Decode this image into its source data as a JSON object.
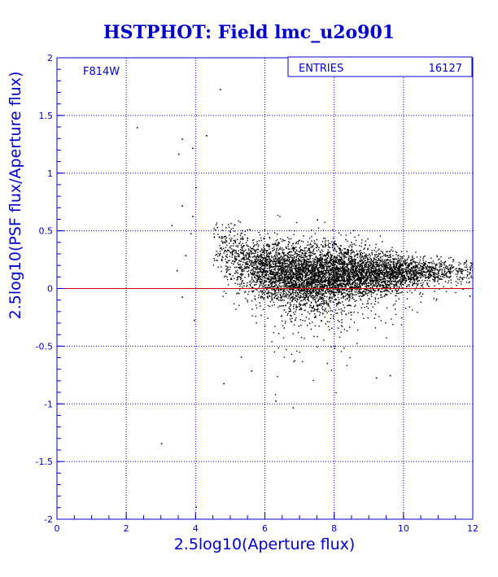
{
  "chart_data": {
    "type": "scatter",
    "title": "HSTPHOT: Field lmc_u2o901",
    "filter_label": "F814W",
    "stats": {
      "label": "ENTRIES",
      "value": "16127"
    },
    "xlabel": "2.5log10(Aperture flux)",
    "ylabel": "2.5log10(PSF flux/Aperture flux)",
    "xlim": [
      0,
      12
    ],
    "ylim": [
      -2,
      2
    ],
    "x_ticks": [
      "0",
      "2",
      "4",
      "6",
      "8",
      "10",
      "12"
    ],
    "y_ticks": [
      "-2",
      "-1.5",
      "-1",
      "-0.5",
      "0",
      "0.5",
      "1",
      "1.5",
      "2"
    ],
    "grid": true,
    "reference_line": {
      "y": 0,
      "color": "#cc0000"
    },
    "colors": {
      "axes": "#0000cc",
      "grid": "#0000cc",
      "points": "#000000",
      "reference": "#cc0000"
    },
    "outlier_points": [
      [
        4.7,
        1.73
      ],
      [
        2.3,
        1.4
      ],
      [
        3.6,
        1.3
      ],
      [
        3.9,
        1.22
      ],
      [
        3.5,
        1.17
      ],
      [
        4.3,
        1.33
      ],
      [
        3.45,
        0.16
      ],
      [
        3.6,
        0.72
      ],
      [
        3.85,
        0.48
      ],
      [
        4.0,
        0.88
      ],
      [
        3.9,
        0.63
      ],
      [
        3.3,
        0.55
      ],
      [
        3.7,
        0.29
      ],
      [
        3.6,
        -0.07
      ],
      [
        3.95,
        -0.27
      ],
      [
        5.3,
        -0.59
      ],
      [
        4.8,
        -0.82
      ],
      [
        5.6,
        -0.71
      ],
      [
        3.0,
        -1.34
      ],
      [
        4.0,
        -1.89
      ],
      [
        6.3,
        -0.97
      ],
      [
        6.8,
        -1.03
      ],
      [
        9.2,
        -0.77
      ],
      [
        9.6,
        -0.75
      ],
      [
        7.5,
        0.6
      ],
      [
        11.7,
        0.0
      ],
      [
        11.9,
        -0.06
      ]
    ],
    "density_profile": [
      {
        "x": 4.5,
        "center": 0.4,
        "spread": 0.12,
        "weight": 0.4
      },
      {
        "x": 5.0,
        "center": 0.3,
        "spread": 0.13,
        "weight": 0.8
      },
      {
        "x": 5.5,
        "center": 0.22,
        "spread": 0.13,
        "weight": 1.5
      },
      {
        "x": 6.0,
        "center": 0.17,
        "spread": 0.13,
        "weight": 2.6
      },
      {
        "x": 6.5,
        "center": 0.14,
        "spread": 0.13,
        "weight": 3.4
      },
      {
        "x": 7.0,
        "center": 0.12,
        "spread": 0.14,
        "weight": 3.8
      },
      {
        "x": 7.5,
        "center": 0.12,
        "spread": 0.14,
        "weight": 3.8
      },
      {
        "x": 8.0,
        "center": 0.13,
        "spread": 0.13,
        "weight": 3.6
      },
      {
        "x": 8.5,
        "center": 0.13,
        "spread": 0.12,
        "weight": 3.2
      },
      {
        "x": 9.0,
        "center": 0.14,
        "spread": 0.1,
        "weight": 2.8
      },
      {
        "x": 9.5,
        "center": 0.14,
        "spread": 0.09,
        "weight": 2.3
      },
      {
        "x": 10.0,
        "center": 0.15,
        "spread": 0.07,
        "weight": 1.7
      },
      {
        "x": 10.5,
        "center": 0.15,
        "spread": 0.06,
        "weight": 1.2
      },
      {
        "x": 11.0,
        "center": 0.16,
        "spread": 0.05,
        "weight": 0.8
      },
      {
        "x": 11.5,
        "center": 0.16,
        "spread": 0.05,
        "weight": 0.5
      },
      {
        "x": 12.0,
        "center": 0.17,
        "spread": 0.05,
        "weight": 0.3
      }
    ]
  }
}
